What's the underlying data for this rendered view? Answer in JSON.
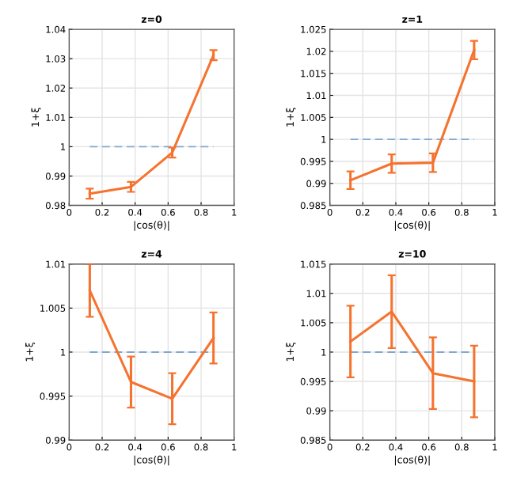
{
  "chart_data": [
    {
      "type": "line",
      "title": "z=0",
      "xlabel": "|cos(θ)|",
      "ylabel": "1+ξ",
      "x": [
        0.125,
        0.375,
        0.625,
        0.875
      ],
      "series": [
        {
          "color": "#f5732f",
          "values": [
            0.984,
            0.9863,
            0.998,
            1.0312
          ],
          "errors": [
            0.0017,
            0.0017,
            0.0017,
            0.0017
          ]
        }
      ],
      "xlim": [
        0,
        1
      ],
      "xticks": [
        0,
        0.2,
        0.4,
        0.6,
        0.8,
        1
      ],
      "ylim": [
        0.98,
        1.04
      ],
      "yticks": [
        0.98,
        0.99,
        1,
        1.01,
        1.02,
        1.03,
        1.04
      ],
      "grid": true,
      "ref_lines": [
        {
          "axis": "y",
          "value": 1,
          "color": "#7fa8d0",
          "line_style": "dashed"
        }
      ]
    },
    {
      "type": "line",
      "title": "z=1",
      "xlabel": "|cos(θ)|",
      "ylabel": "1+ξ",
      "x": [
        0.125,
        0.375,
        0.625,
        0.875
      ],
      "series": [
        {
          "color": "#f5732f",
          "values": [
            0.9907,
            0.9945,
            0.9947,
            1.0203
          ],
          "errors": [
            0.002,
            0.0021,
            0.0021,
            0.0021
          ]
        }
      ],
      "xlim": [
        0,
        1
      ],
      "xticks": [
        0,
        0.2,
        0.4,
        0.6,
        0.8,
        1
      ],
      "ylim": [
        0.985,
        1.025
      ],
      "yticks": [
        0.985,
        0.99,
        0.995,
        1,
        1.005,
        1.01,
        1.015,
        1.02,
        1.025
      ],
      "grid": true,
      "ref_lines": [
        {
          "axis": "y",
          "value": 1,
          "color": "#7fa8d0",
          "line_style": "dashed"
        }
      ]
    },
    {
      "type": "line",
      "title": "z=4",
      "xlabel": "|cos(θ)|",
      "ylabel": "1+ξ",
      "x": [
        0.125,
        0.375,
        0.625,
        0.875
      ],
      "series": [
        {
          "color": "#f5732f",
          "values": [
            1.007,
            0.9966,
            0.9947,
            1.0016
          ],
          "errors": [
            0.003,
            0.0029,
            0.0029,
            0.0029
          ]
        }
      ],
      "xlim": [
        0,
        1
      ],
      "xticks": [
        0,
        0.2,
        0.4,
        0.6,
        0.8,
        1
      ],
      "ylim": [
        0.99,
        1.01
      ],
      "yticks": [
        0.99,
        0.995,
        1,
        1.005,
        1.01
      ],
      "grid": true,
      "ref_lines": [
        {
          "axis": "y",
          "value": 1,
          "color": "#7fa8d0",
          "line_style": "dashed"
        }
      ]
    },
    {
      "type": "line",
      "title": "z=10",
      "xlabel": "|cos(θ)|",
      "ylabel": "1+ξ",
      "x": [
        0.125,
        0.375,
        0.625,
        0.875
      ],
      "series": [
        {
          "color": "#f5732f",
          "values": [
            1.0018,
            1.0069,
            0.9964,
            0.995
          ],
          "errors": [
            0.0061,
            0.0062,
            0.0061,
            0.0061
          ]
        }
      ],
      "xlim": [
        0,
        1
      ],
      "xticks": [
        0,
        0.2,
        0.4,
        0.6,
        0.8,
        1
      ],
      "ylim": [
        0.985,
        1.015
      ],
      "yticks": [
        0.985,
        0.99,
        0.995,
        1,
        1.005,
        1.01,
        1.015
      ],
      "grid": true,
      "ref_lines": [
        {
          "axis": "y",
          "value": 1,
          "color": "#7fa8d0",
          "line_style": "dashed"
        }
      ]
    }
  ]
}
